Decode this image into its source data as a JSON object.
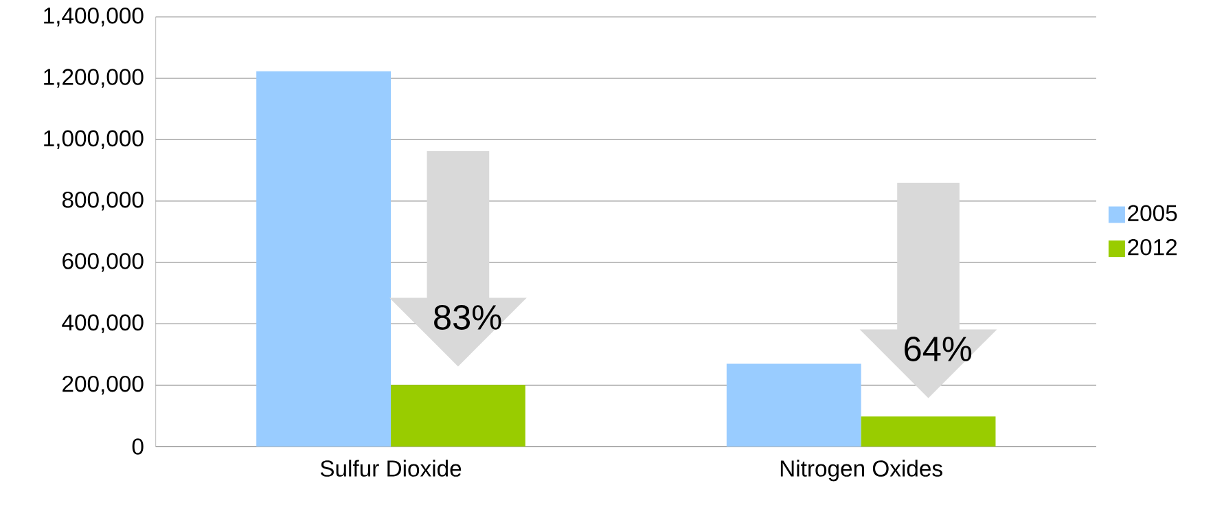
{
  "chart_data": {
    "type": "bar",
    "categories": [
      "Sulfur Dioxide",
      "Nitrogen Oxides"
    ],
    "series": [
      {
        "name": "2005",
        "color": "#99ccff",
        "values": [
          1223000,
          270000
        ]
      },
      {
        "name": "2012",
        "color": "#99cc00",
        "values": [
          201000,
          98000
        ]
      }
    ],
    "ylim": [
      0,
      1400000
    ],
    "yticks": [
      {
        "value": 0,
        "label": "0"
      },
      {
        "value": 200000,
        "label": "200,000"
      },
      {
        "value": 400000,
        "label": "400,000"
      },
      {
        "value": 600000,
        "label": "600,000"
      },
      {
        "value": 800000,
        "label": "800,000"
      },
      {
        "value": 1000000,
        "label": "1,000,000"
      },
      {
        "value": 1200000,
        "label": "1,200,000"
      },
      {
        "value": 1400000,
        "label": "1,400,000"
      }
    ],
    "grid": "y",
    "legend": "right",
    "annotations": [
      "83%",
      "64%"
    ]
  }
}
